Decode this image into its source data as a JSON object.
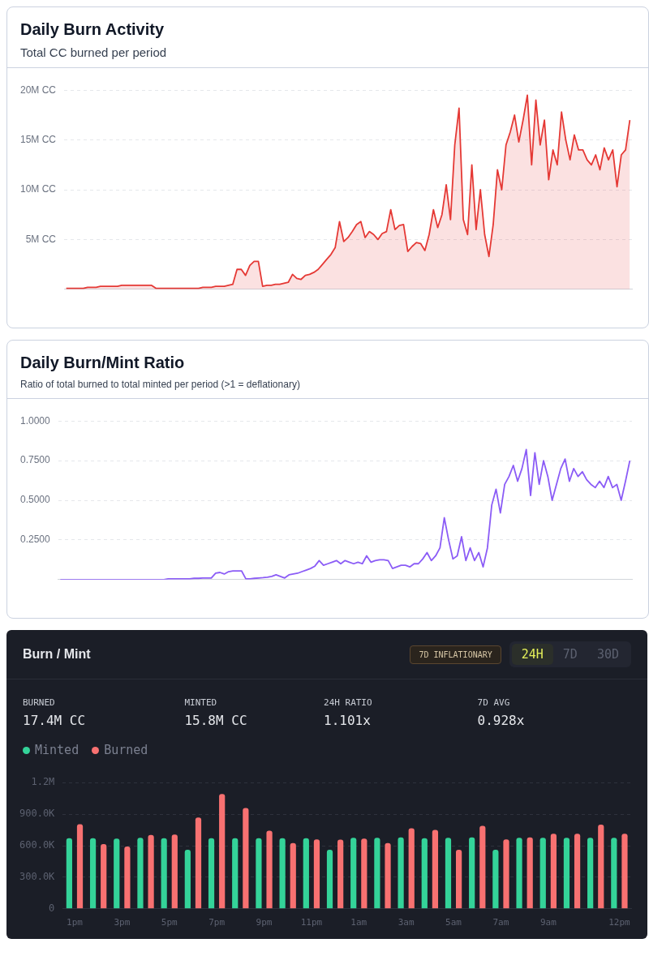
{
  "chart_data": [
    {
      "type": "area",
      "title": "Daily Burn Activity",
      "subtitle": "Total CC burned per period",
      "categories": [
        null,
        null,
        null,
        null,
        null,
        null,
        null,
        null,
        null,
        null,
        null,
        null,
        null,
        null,
        null,
        null,
        null,
        null,
        null,
        null,
        null,
        null,
        null,
        null,
        null,
        null,
        null,
        null,
        null,
        null,
        null,
        null,
        null,
        null,
        null,
        null,
        null,
        null,
        null,
        null,
        null,
        null,
        null,
        null,
        null,
        null,
        null,
        null,
        null,
        null,
        null,
        null,
        null,
        null,
        null,
        null,
        null,
        null,
        null,
        null,
        null,
        null,
        null,
        null,
        null,
        null,
        null,
        null,
        null,
        null,
        null,
        null,
        null,
        null,
        null,
        null,
        null,
        null,
        null,
        null,
        null,
        null,
        null,
        null,
        null,
        null,
        null,
        null,
        null,
        null,
        null,
        null,
        null,
        null,
        null,
        null,
        null,
        null,
        null,
        null,
        null,
        null,
        null,
        null,
        null,
        null,
        null,
        null,
        null,
        null,
        null,
        null,
        null,
        null,
        null,
        null,
        null,
        null,
        null,
        null,
        null,
        null,
        null,
        null,
        null,
        null,
        null,
        null,
        null,
        null,
        null,
        null,
        null
      ],
      "series": [
        {
          "color": "#e53935",
          "values": [
            0.1,
            0.1,
            0.1,
            0.1,
            0.1,
            0.2,
            0.2,
            0.2,
            0.3,
            0.3,
            0.3,
            0.3,
            0.3,
            0.4,
            0.4,
            0.4,
            0.4,
            0.4,
            0.4,
            0.4,
            0.4,
            0.1,
            0.1,
            0.1,
            0.1,
            0.1,
            0.1,
            0.1,
            0.1,
            0.1,
            0.1,
            0.1,
            0.2,
            0.2,
            0.2,
            0.3,
            0.3,
            0.3,
            0.4,
            0.5,
            2.0,
            2.0,
            1.4,
            2.4,
            2.8,
            2.8,
            0.3,
            0.4,
            0.4,
            0.5,
            0.5,
            0.6,
            0.7,
            1.5,
            1.1,
            1.0,
            1.4,
            1.5,
            1.7,
            2.0,
            2.5,
            3.0,
            3.5,
            4.2,
            6.8,
            4.8,
            5.2,
            5.8,
            6.5,
            6.8,
            5.2,
            5.8,
            5.5,
            5.0,
            5.6,
            5.8,
            8.0,
            6.0,
            6.4,
            6.5,
            3.8,
            4.3,
            4.7,
            4.6,
            3.9,
            5.5,
            8.0,
            6.2,
            7.5,
            10.5,
            7.0,
            14.5,
            18.2,
            7.0,
            5.5,
            12.5,
            6.0,
            10.0,
            5.5,
            3.3,
            6.5,
            12.0,
            10.0,
            14.5,
            15.8,
            17.5,
            14.8,
            17.0,
            19.5,
            12.5,
            19.0,
            14.5,
            17.0,
            11.0,
            14.0,
            12.5,
            17.8,
            15.0,
            13.0,
            15.5,
            14.0,
            14.0,
            13.0,
            12.5,
            13.5,
            12.0,
            14.2,
            13.0,
            14.0,
            10.3,
            13.5,
            14.0,
            17.0
          ]
        }
      ],
      "ylim": [
        0,
        20
      ],
      "yticks": [
        {
          "value": 5,
          "label": "5M CC"
        },
        {
          "value": 10,
          "label": "10M CC"
        },
        {
          "value": 15,
          "label": "15M CC"
        },
        {
          "value": 20,
          "label": "20M CC"
        }
      ],
      "grid": "y"
    },
    {
      "type": "line",
      "title": "Daily Burn/Mint Ratio",
      "subtitle": "Ratio of total burned to total minted per period (>1 = deflationary)",
      "categories": [
        null,
        null,
        null,
        null,
        null,
        null,
        null,
        null,
        null,
        null,
        null,
        null,
        null,
        null,
        null,
        null,
        null,
        null,
        null,
        null,
        null,
        null,
        null,
        null,
        null,
        null,
        null,
        null,
        null,
        null,
        null,
        null,
        null,
        null,
        null,
        null,
        null,
        null,
        null,
        null,
        null,
        null,
        null,
        null,
        null,
        null,
        null,
        null,
        null,
        null,
        null,
        null,
        null,
        null,
        null,
        null,
        null,
        null,
        null,
        null,
        null,
        null,
        null,
        null,
        null,
        null,
        null,
        null,
        null,
        null,
        null,
        null,
        null,
        null,
        null,
        null,
        null,
        null,
        null,
        null,
        null,
        null,
        null,
        null,
        null,
        null,
        null,
        null,
        null,
        null,
        null,
        null,
        null,
        null,
        null,
        null,
        null,
        null,
        null,
        null,
        null,
        null,
        null,
        null,
        null,
        null,
        null,
        null,
        null,
        null,
        null,
        null,
        null,
        null,
        null,
        null,
        null,
        null,
        null,
        null,
        null,
        null,
        null,
        null,
        null,
        null,
        null,
        null,
        null,
        null,
        null,
        null,
        null
      ],
      "series": [
        {
          "color": "#8b5cf6",
          "values": [
            0,
            0,
            0,
            0,
            0,
            0,
            0,
            0,
            0,
            0,
            0,
            0,
            0,
            0,
            0,
            0,
            0,
            0,
            0,
            0,
            0,
            0,
            0,
            0,
            0,
            0.005,
            0.005,
            0.005,
            0.005,
            0.005,
            0.005,
            0.008,
            0.008,
            0.01,
            0.01,
            0.01,
            0.04,
            0.045,
            0.035,
            0.05,
            0.055,
            0.055,
            0.055,
            0.005,
            0.005,
            0.008,
            0.01,
            0.012,
            0.015,
            0.02,
            0.03,
            0.02,
            0.01,
            0.03,
            0.035,
            0.04,
            0.05,
            0.06,
            0.07,
            0.085,
            0.12,
            0.09,
            0.1,
            0.11,
            0.12,
            0.1,
            0.12,
            0.11,
            0.1,
            0.11,
            0.1,
            0.15,
            0.11,
            0.12,
            0.125,
            0.125,
            0.12,
            0.07,
            0.08,
            0.09,
            0.09,
            0.08,
            0.1,
            0.1,
            0.13,
            0.17,
            0.12,
            0.15,
            0.2,
            0.39,
            0.25,
            0.13,
            0.15,
            0.27,
            0.12,
            0.2,
            0.12,
            0.17,
            0.08,
            0.2,
            0.47,
            0.57,
            0.42,
            0.6,
            0.65,
            0.72,
            0.62,
            0.7,
            0.82,
            0.53,
            0.8,
            0.6,
            0.75,
            0.65,
            0.5,
            0.6,
            0.7,
            0.76,
            0.62,
            0.7,
            0.65,
            0.68,
            0.63,
            0.6,
            0.58,
            0.62,
            0.58,
            0.65,
            0.58,
            0.6,
            0.5,
            0.62,
            0.75
          ]
        }
      ],
      "ylim": [
        0,
        1
      ],
      "yticks": [
        {
          "value": 0.25,
          "label": "0.2500"
        },
        {
          "value": 0.5,
          "label": "0.5000"
        },
        {
          "value": 0.75,
          "label": "0.7500"
        },
        {
          "value": 1,
          "label": "1.0000"
        }
      ],
      "grid": "y"
    },
    {
      "type": "bar",
      "title": "Burn / Mint",
      "annotations": [
        "7D INFLATIONARY",
        "24H",
        "7D",
        "30D",
        "BURNED",
        "17.4M CC",
        "MINTED",
        "15.8M CC",
        "24H RATIO",
        "1.101x",
        "7D AVG",
        "0.928x"
      ],
      "categories": [
        "1pm",
        null,
        "3pm",
        null,
        "5pm",
        null,
        "7pm",
        null,
        "9pm",
        null,
        "11pm",
        null,
        "1am",
        null,
        "3am",
        null,
        "5am",
        null,
        "7am",
        null,
        "9am",
        null,
        null,
        "12pm"
      ],
      "series": [
        {
          "name": "Minted",
          "color": "#34d399",
          "values": [
            672000,
            672000,
            668000,
            675000,
            672000,
            562000,
            672000,
            672000,
            672000,
            672000,
            672000,
            562000,
            675000,
            675000,
            679000,
            672000,
            675000,
            679000,
            562000,
            675000,
            675000,
            675000,
            675000,
            675000
          ]
        },
        {
          "name": "Burned",
          "color": "#f87171",
          "values": [
            804000,
            615000,
            592000,
            702000,
            706000,
            868000,
            1091000,
            958000,
            743000,
            626000,
            660000,
            657000,
            668000,
            626000,
            766000,
            751000,
            562000,
            789000,
            660000,
            679000,
            713000,
            713000,
            800000,
            713000
          ]
        }
      ],
      "ylim": [
        0,
        1200000
      ],
      "yticks": [
        0,
        {
          "value": 300000,
          "label": "300.0K"
        },
        {
          "value": 600000,
          "label": "600.0K"
        },
        {
          "value": 900000,
          "label": "900.0K"
        },
        {
          "value": 1200000,
          "label": "1.2M"
        }
      ],
      "grid": "y",
      "legend": "top left"
    }
  ]
}
